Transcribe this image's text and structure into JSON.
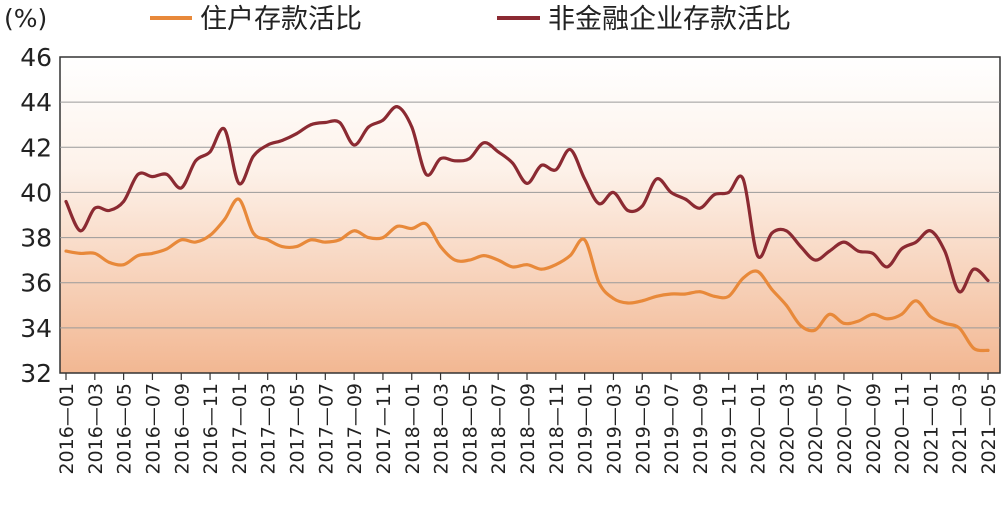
{
  "chart_data": {
    "type": "line",
    "ylabel": "(%)",
    "ylim": [
      32,
      46
    ],
    "yticks": [
      32,
      34,
      36,
      38,
      40,
      42,
      44,
      46
    ],
    "grid_y": true,
    "legend_position": "top",
    "x_tick_labels": [
      "2016—01",
      "2016—03",
      "2016—05",
      "2016—07",
      "2016—09",
      "2016—11",
      "2017—01",
      "2017—03",
      "2017—05",
      "2017—07",
      "2017—09",
      "2017—11",
      "2018—01",
      "2018—03",
      "2018—05",
      "2018—07",
      "2018—09",
      "2018—11",
      "2019—01",
      "2019—03",
      "2019—05",
      "2019—07",
      "2019—09",
      "2019—11",
      "2020—01",
      "2020—03",
      "2020—05",
      "2020—07",
      "2020—09",
      "2020—11",
      "2021—01",
      "2021—03",
      "2021—05"
    ],
    "x": [
      "2016-01",
      "2016-02",
      "2016-03",
      "2016-04",
      "2016-05",
      "2016-06",
      "2016-07",
      "2016-08",
      "2016-09",
      "2016-10",
      "2016-11",
      "2016-12",
      "2017-01",
      "2017-02",
      "2017-03",
      "2017-04",
      "2017-05",
      "2017-06",
      "2017-07",
      "2017-08",
      "2017-09",
      "2017-10",
      "2017-11",
      "2017-12",
      "2018-01",
      "2018-02",
      "2018-03",
      "2018-04",
      "2018-05",
      "2018-06",
      "2018-07",
      "2018-08",
      "2018-09",
      "2018-10",
      "2018-11",
      "2018-12",
      "2019-01",
      "2019-02",
      "2019-03",
      "2019-04",
      "2019-05",
      "2019-06",
      "2019-07",
      "2019-08",
      "2019-09",
      "2019-10",
      "2019-11",
      "2019-12",
      "2020-01",
      "2020-02",
      "2020-03",
      "2020-04",
      "2020-05",
      "2020-06",
      "2020-07",
      "2020-08",
      "2020-09",
      "2020-10",
      "2020-11",
      "2020-12",
      "2021-01",
      "2021-02",
      "2021-03",
      "2021-04",
      "2021-05"
    ],
    "series": [
      {
        "name": "住户存款活比",
        "color": "#E8893A",
        "values": [
          37.4,
          37.3,
          37.3,
          36.9,
          36.8,
          37.2,
          37.3,
          37.5,
          37.9,
          37.8,
          38.1,
          38.8,
          39.7,
          38.2,
          37.9,
          37.6,
          37.6,
          37.9,
          37.8,
          37.9,
          38.3,
          38.0,
          38.0,
          38.5,
          38.4,
          38.6,
          37.6,
          37.0,
          37.0,
          37.2,
          37.0,
          36.7,
          36.8,
          36.6,
          36.8,
          37.2,
          37.9,
          36.0,
          35.3,
          35.1,
          35.2,
          35.4,
          35.5,
          35.5,
          35.6,
          35.4,
          35.4,
          36.2,
          36.5,
          35.7,
          35.0,
          34.1,
          33.9,
          34.6,
          34.2,
          34.3,
          34.6,
          34.4,
          34.6,
          35.2,
          34.5,
          34.2,
          34.0,
          33.1,
          33.0
        ]
      },
      {
        "name": "非金融企业存款活比",
        "color": "#8B2A32",
        "values": [
          39.6,
          38.3,
          39.3,
          39.2,
          39.6,
          40.8,
          40.7,
          40.8,
          40.2,
          41.4,
          41.8,
          42.8,
          40.4,
          41.6,
          42.1,
          42.3,
          42.6,
          43.0,
          43.1,
          43.1,
          42.1,
          42.9,
          43.2,
          43.8,
          42.9,
          40.8,
          41.5,
          41.4,
          41.5,
          42.2,
          41.8,
          41.3,
          40.4,
          41.2,
          41.0,
          41.9,
          40.6,
          39.5,
          40.0,
          39.2,
          39.4,
          40.6,
          40.0,
          39.7,
          39.3,
          39.9,
          40.0,
          40.6,
          37.2,
          38.2,
          38.3,
          37.6,
          37.0,
          37.4,
          37.8,
          37.4,
          37.3,
          36.7,
          37.5,
          37.8,
          38.3,
          37.4,
          35.6,
          36.6,
          36.1
        ]
      }
    ]
  }
}
